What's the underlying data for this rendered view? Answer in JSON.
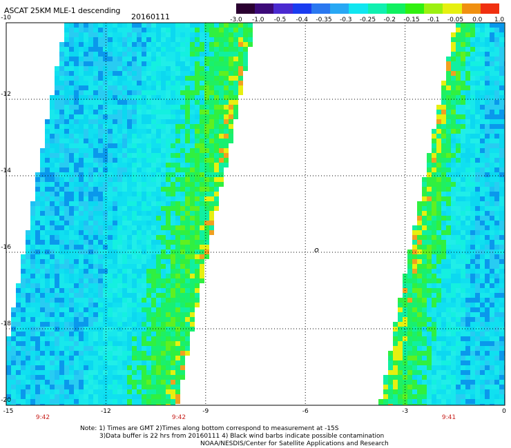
{
  "header": {
    "title": "ASCAT 25KM MLE-1 descending",
    "date": "20160111"
  },
  "colorbar": {
    "colors": [
      "#2a0030",
      "#3c0a78",
      "#4a2ad0",
      "#1a3cf0",
      "#2a78f0",
      "#28a8f4",
      "#10e6f0",
      "#10f0b0",
      "#10f060",
      "#30f010",
      "#9cf010",
      "#e6f010",
      "#f09010",
      "#f03010"
    ],
    "labels": [
      "-3.0",
      "-1.0",
      "-0.5",
      "-0.4",
      "-0.35",
      "-0.3",
      "-0.25",
      "-0.2",
      "-0.15",
      "-0.1",
      "-0.05",
      "0.0",
      "1.0"
    ]
  },
  "map": {
    "lon_range": [
      -15,
      0
    ],
    "lat_range": [
      -20,
      -10
    ],
    "y_ticks": [
      "-10",
      "-12",
      "-14",
      "-16",
      "-18",
      "-20"
    ],
    "x_ticks": [
      "-15",
      "-12",
      "-9",
      "-6",
      "-3",
      "0"
    ],
    "pass_times": [
      "9:42",
      "9:42",
      "9:41"
    ],
    "island_label": "o",
    "grid": true
  },
  "notes": {
    "line1": "Note: 1) Times are GMT 2)Times along bottom correspond to measurement at -15S",
    "line2": "3)Data buffer is 22 hrs from 20160111 4) Black wind barbs indicate possible contamination",
    "line3": "NOAA/NESDIS/Center for Satellite Applications and Research"
  }
}
